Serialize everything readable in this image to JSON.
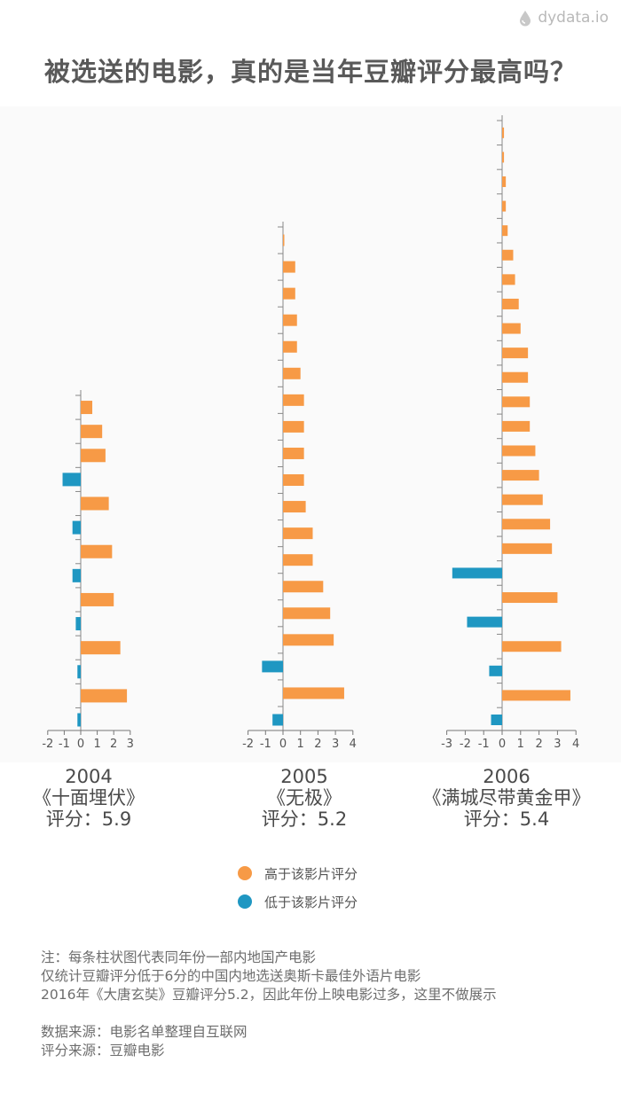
{
  "brand": {
    "text": "dydata.io"
  },
  "title": "被选送的电影，真的是当年豆瓣评分最高吗？",
  "colors": {
    "above": "#f79a46",
    "below": "#1f97c2",
    "axis": "#555555"
  },
  "chart_data": [
    {
      "type": "bar",
      "orientation": "horizontal",
      "year": "2004",
      "film": "《十面埋伏》",
      "score_label": "评分：5.9",
      "xlim": [
        -2,
        3
      ],
      "x_ticks": [
        "-2",
        "-1",
        "0",
        "1",
        "2",
        "3"
      ],
      "values": [
        0.7,
        1.3,
        1.5,
        -1.1,
        1.7,
        -0.5,
        1.9,
        -0.5,
        2.0,
        -0.3,
        2.4,
        -0.2,
        2.8,
        -0.2
      ]
    },
    {
      "type": "bar",
      "orientation": "horizontal",
      "year": "2005",
      "film": "《无极》",
      "score_label": "评分：5.2",
      "xlim": [
        -2,
        4
      ],
      "x_ticks": [
        "-2",
        "-1",
        "0",
        "1",
        "2",
        "3",
        "4"
      ],
      "values": [
        0.0,
        0.7,
        0.7,
        0.8,
        0.8,
        1.0,
        1.2,
        1.2,
        1.2,
        1.2,
        1.3,
        1.7,
        1.7,
        2.3,
        2.7,
        2.9,
        -1.2,
        3.5,
        -0.6
      ]
    },
    {
      "type": "bar",
      "orientation": "horizontal",
      "year": "2006",
      "film": "《满城尽带黄金甲》",
      "score_label": "评分：5.4",
      "xlim": [
        -3,
        4
      ],
      "x_ticks": [
        "-3",
        "-2",
        "-1",
        "0",
        "1",
        "2",
        "3",
        "4"
      ],
      "values": [
        0.1,
        0.1,
        0.2,
        0.2,
        0.3,
        0.6,
        0.7,
        0.9,
        1.0,
        1.4,
        1.4,
        1.5,
        1.5,
        1.8,
        2.0,
        2.2,
        2.6,
        2.7,
        -2.7,
        3.0,
        -1.9,
        3.2,
        -0.7,
        3.7,
        -0.6
      ]
    }
  ],
  "legend": [
    {
      "label": "高于该影片评分",
      "color": "#f79a46"
    },
    {
      "label": "低于该影片评分",
      "color": "#1f97c2"
    }
  ],
  "notes": [
    "注：每条柱状图代表同年份一部内地国产电影",
    "仅统计豆瓣评分低于6分的中国内地选送奥斯卡最佳外语片电影",
    "2016年《大唐玄奘》豆瓣评分5.2，因此年份上映电影过多，这里不做展示"
  ],
  "sources": [
    "数据来源：电影名单整理自互联网",
    "评分来源：豆瓣电影"
  ]
}
